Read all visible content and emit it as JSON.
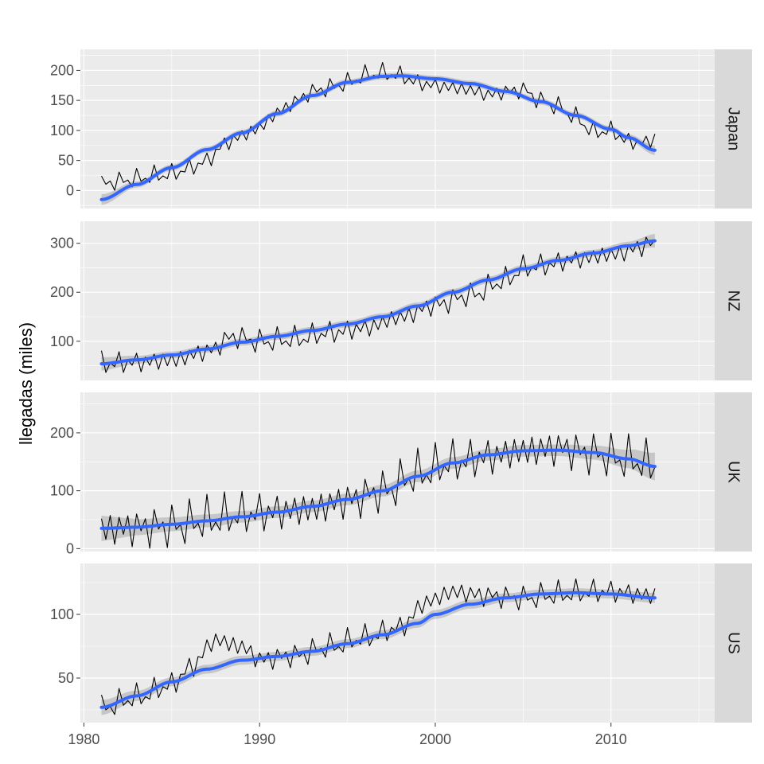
{
  "chart_data": {
    "type": "line",
    "ylabel": "llegadas (miles)",
    "xlabel": "",
    "x_ticks": [
      1980,
      1990,
      2000,
      2010
    ],
    "xlim": [
      1979.8,
      2015.9
    ],
    "legend": "none",
    "grid": true,
    "colors": {
      "series_line": "#000000",
      "smooth_line": "#3366FF",
      "ribbon": "#999999",
      "panel_bg": "#EBEBEB",
      "strip_bg": "#D9D9D9",
      "grid": "#FFFFFF"
    },
    "panels": [
      {
        "name": "Japan",
        "ylim": [
          -30,
          235
        ],
        "y_ticks": [
          0,
          50,
          100,
          150,
          200
        ],
        "series_key": [
          [
            1981.0,
            12
          ],
          [
            1982.0,
            16
          ],
          [
            1983.0,
            20
          ],
          [
            1984.0,
            25
          ],
          [
            1985.0,
            28
          ],
          [
            1986.0,
            38
          ],
          [
            1987.0,
            50
          ],
          [
            1988.0,
            78
          ],
          [
            1989.0,
            92
          ],
          [
            1990.0,
            105
          ],
          [
            1991.0,
            130
          ],
          [
            1992.0,
            148
          ],
          [
            1993.0,
            165
          ],
          [
            1994.0,
            172
          ],
          [
            1995.0,
            180
          ],
          [
            1996.0,
            192
          ],
          [
            1997.0,
            196
          ],
          [
            1998.0,
            192
          ],
          [
            1999.0,
            180
          ],
          [
            2000.0,
            175
          ],
          [
            2001.0,
            172
          ],
          [
            2002.0,
            168
          ],
          [
            2003.0,
            160
          ],
          [
            2004.0,
            165
          ],
          [
            2005.0,
            168
          ],
          [
            2006.0,
            150
          ],
          [
            2007.0,
            140
          ],
          [
            2008.0,
            122
          ],
          [
            2009.0,
            98
          ],
          [
            2010.0,
            100
          ],
          [
            2011.0,
            82
          ],
          [
            2012.0,
            80
          ],
          [
            2012.5,
            88
          ]
        ],
        "noise": 22,
        "smooth": [
          [
            1981.0,
            -15
          ],
          [
            1983.0,
            10
          ],
          [
            1985.0,
            38
          ],
          [
            1987.0,
            68
          ],
          [
            1989.0,
            96
          ],
          [
            1991.0,
            128
          ],
          [
            1993.0,
            158
          ],
          [
            1995.0,
            180
          ],
          [
            1997.0,
            190
          ],
          [
            1998.0,
            191
          ],
          [
            2000.0,
            186
          ],
          [
            2002.0,
            178
          ],
          [
            2004.0,
            165
          ],
          [
            2006.0,
            148
          ],
          [
            2008.0,
            125
          ],
          [
            2010.0,
            102
          ],
          [
            2011.0,
            88
          ],
          [
            2012.5,
            67
          ]
        ],
        "ribbon_halfwidth": [
          9,
          5,
          5,
          5,
          5,
          5,
          5,
          5,
          5,
          5,
          5,
          5,
          5,
          5,
          5,
          5,
          5,
          8
        ]
      },
      {
        "name": "NZ",
        "ylim": [
          20,
          345
        ],
        "y_ticks": [
          100,
          200,
          300
        ],
        "series_key": [
          [
            1981.0,
            55
          ],
          [
            1983.0,
            58
          ],
          [
            1985.0,
            62
          ],
          [
            1987.0,
            80
          ],
          [
            1988.5,
            110
          ],
          [
            1990.0,
            100
          ],
          [
            1992.0,
            105
          ],
          [
            1994.0,
            118
          ],
          [
            1996.0,
            128
          ],
          [
            1998.0,
            150
          ],
          [
            2000.0,
            175
          ],
          [
            2002.0,
            195
          ],
          [
            2004.0,
            225
          ],
          [
            2005.0,
            250
          ],
          [
            2006.0,
            255
          ],
          [
            2008.0,
            268
          ],
          [
            2010.0,
            278
          ],
          [
            2012.5,
            300
          ]
        ],
        "noise": 35,
        "smooth": [
          [
            1981.0,
            54
          ],
          [
            1983.0,
            62
          ],
          [
            1985.0,
            72
          ],
          [
            1987.0,
            84
          ],
          [
            1989.0,
            98
          ],
          [
            1991.0,
            110
          ],
          [
            1993.0,
            122
          ],
          [
            1995.0,
            135
          ],
          [
            1997.0,
            150
          ],
          [
            1999.0,
            172
          ],
          [
            2001.0,
            200
          ],
          [
            2003.0,
            225
          ],
          [
            2005.0,
            248
          ],
          [
            2007.0,
            265
          ],
          [
            2009.0,
            280
          ],
          [
            2011.0,
            295
          ],
          [
            2012.5,
            305
          ]
        ],
        "ribbon_halfwidth": [
          14,
          8,
          7,
          7,
          7,
          7,
          7,
          7,
          7,
          7,
          7,
          7,
          7,
          7,
          7,
          8,
          14
        ]
      },
      {
        "name": "UK",
        "ylim": [
          -5,
          270
        ],
        "y_ticks": [
          0,
          100,
          200
        ],
        "series_key": [
          [
            1981.0,
            35
          ],
          [
            1983.0,
            38
          ],
          [
            1985.0,
            40
          ],
          [
            1987.0,
            50
          ],
          [
            1989.0,
            60
          ],
          [
            1991.0,
            65
          ],
          [
            1993.0,
            70
          ],
          [
            1995.0,
            85
          ],
          [
            1997.0,
            100
          ],
          [
            1999.0,
            130
          ],
          [
            2001.0,
            150
          ],
          [
            2003.0,
            160
          ],
          [
            2005.0,
            170
          ],
          [
            2007.0,
            175
          ],
          [
            2009.0,
            165
          ],
          [
            2011.0,
            155
          ],
          [
            2012.5,
            145
          ]
        ],
        "noise": 55,
        "smooth": [
          [
            1981.0,
            35
          ],
          [
            1983.0,
            37
          ],
          [
            1985.0,
            42
          ],
          [
            1987.0,
            48
          ],
          [
            1989.0,
            55
          ],
          [
            1991.0,
            63
          ],
          [
            1993.0,
            73
          ],
          [
            1995.0,
            85
          ],
          [
            1997.0,
            100
          ],
          [
            1999.0,
            125
          ],
          [
            2001.0,
            148
          ],
          [
            2003.0,
            162
          ],
          [
            2005.0,
            169
          ],
          [
            2007.0,
            170
          ],
          [
            2009.0,
            166
          ],
          [
            2011.0,
            155
          ],
          [
            2012.5,
            142
          ]
        ],
        "ribbon_halfwidth": [
          22,
          14,
          12,
          11,
          10,
          10,
          10,
          10,
          10,
          10,
          10,
          10,
          10,
          10,
          12,
          16,
          24
        ]
      },
      {
        "name": "US",
        "ylim": [
          15,
          140
        ],
        "y_ticks": [
          50,
          100
        ],
        "series_key": [
          [
            1981.0,
            27
          ],
          [
            1983.0,
            35
          ],
          [
            1985.0,
            45
          ],
          [
            1986.0,
            58
          ],
          [
            1987.5,
            80
          ],
          [
            1989.0,
            75
          ],
          [
            1990.0,
            65
          ],
          [
            1992.0,
            68
          ],
          [
            1994.0,
            75
          ],
          [
            1996.0,
            82
          ],
          [
            1998.0,
            90
          ],
          [
            1999.5,
            110
          ],
          [
            2001.0,
            118
          ],
          [
            2003.0,
            115
          ],
          [
            2005.0,
            113
          ],
          [
            2007.0,
            116
          ],
          [
            2009.0,
            118
          ],
          [
            2010.0,
            118
          ],
          [
            2012.5,
            115
          ]
        ],
        "noise": 14,
        "smooth": [
          [
            1981.0,
            27
          ],
          [
            1983.0,
            36
          ],
          [
            1985.0,
            47
          ],
          [
            1987.0,
            57
          ],
          [
            1989.0,
            64
          ],
          [
            1991.0,
            67
          ],
          [
            1993.0,
            71
          ],
          [
            1995.0,
            77
          ],
          [
            1997.0,
            84
          ],
          [
            1999.0,
            93
          ],
          [
            2000.0,
            100
          ],
          [
            2002.0,
            108
          ],
          [
            2004.0,
            113
          ],
          [
            2006.0,
            116
          ],
          [
            2008.0,
            117
          ],
          [
            2010.0,
            116
          ],
          [
            2012.5,
            113
          ]
        ],
        "ribbon_halfwidth": [
          6,
          4,
          3.5,
          3.5,
          3.5,
          3.5,
          3.5,
          3.5,
          3.5,
          3.5,
          3.5,
          3.5,
          3.5,
          3.5,
          3.5,
          3.5,
          4
        ]
      }
    ]
  }
}
